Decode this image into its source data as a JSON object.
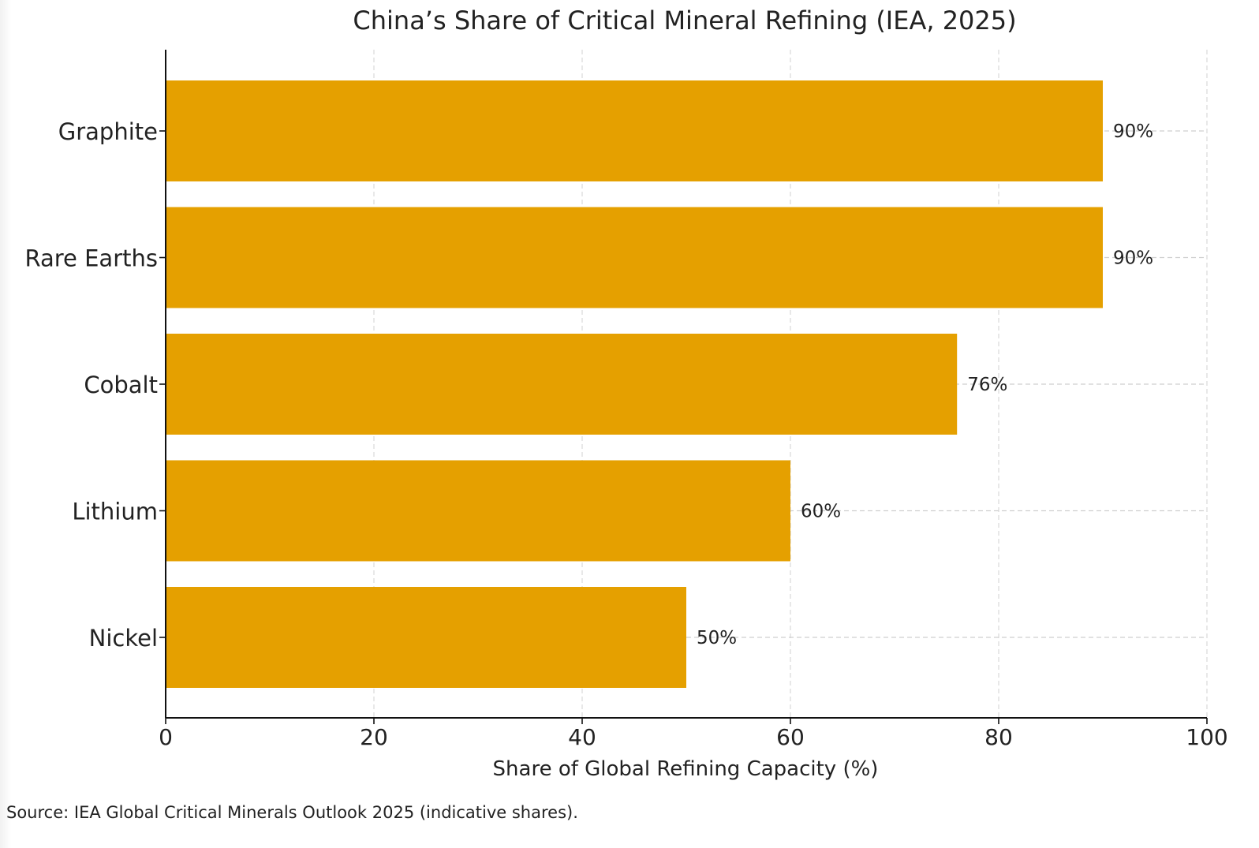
{
  "chart_data": {
    "type": "bar",
    "orientation": "horizontal",
    "title": "China’s Share of Critical Mineral Refining (IEA, 2025)",
    "xlabel": "Share of Global Refining Capacity (%)",
    "ylabel": "",
    "categories": [
      "Graphite",
      "Rare Earths",
      "Cobalt",
      "Lithium",
      "Nickel"
    ],
    "values": [
      90,
      90,
      76,
      60,
      50
    ],
    "data_labels": [
      "90%",
      "90%",
      "76%",
      "60%",
      "50%"
    ],
    "xlim": [
      0,
      100
    ],
    "xticks": [
      0,
      20,
      40,
      60,
      80,
      100
    ],
    "xtick_labels": [
      "0",
      "20",
      "40",
      "60",
      "80",
      "100"
    ],
    "grid": true,
    "bar_color": "#E5A000"
  },
  "footer": {
    "source": "Source: IEA Global Critical Minerals Outlook 2025 (indicative shares)."
  }
}
